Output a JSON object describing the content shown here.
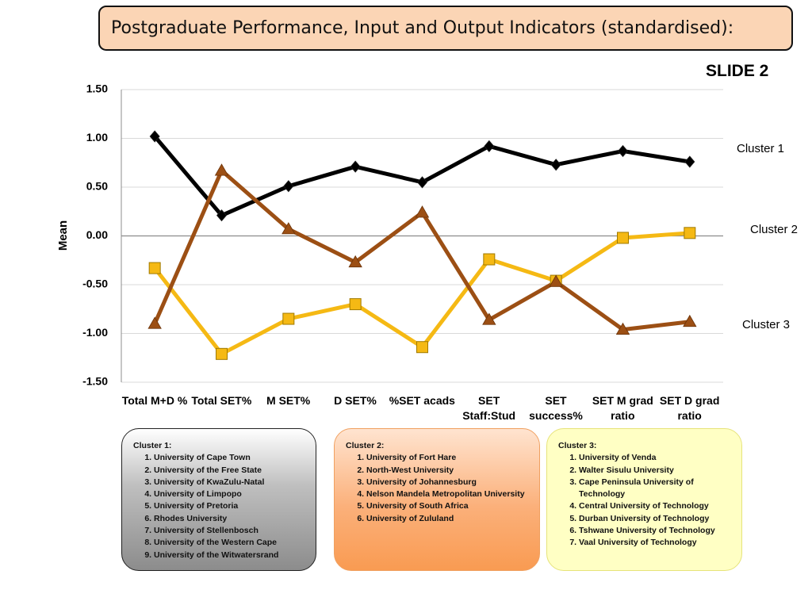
{
  "title": "Postgraduate Performance, Input and Output Indicators (standardised):",
  "slide_label": "SLIDE 2",
  "chart_data": {
    "type": "line",
    "ylabel": "Mean",
    "categories": [
      "Total M+D %",
      "Total SET%",
      "M SET%",
      "D SET%",
      "%SET acads",
      "SET Staff:Stud",
      "SET success%",
      "SET M grad ratio",
      "SET D grad ratio"
    ],
    "series": [
      {
        "name": "Cluster 1",
        "color": "#000000",
        "marker": "diamond",
        "values": [
          1.02,
          0.21,
          0.51,
          0.71,
          0.55,
          0.92,
          0.73,
          0.87,
          0.76
        ]
      },
      {
        "name": "Cluster 2",
        "color": "#f5b914",
        "marker": "square",
        "values": [
          -0.33,
          -1.21,
          -0.85,
          -0.7,
          -1.14,
          -0.24,
          -0.46,
          -0.02,
          0.03
        ]
      },
      {
        "name": "Cluster 3",
        "color": "#9c4f14",
        "marker": "triangle",
        "values": [
          -0.9,
          0.67,
          0.07,
          -0.27,
          0.24,
          -0.86,
          -0.47,
          -0.96,
          -0.88
        ]
      }
    ],
    "ylim": [
      -1.5,
      1.5
    ],
    "yticks": [
      {
        "value": 1.5,
        "label": "1.50"
      },
      {
        "value": 1,
        "label": "1.00"
      },
      {
        "value": 0.5,
        "label": "0.50"
      },
      {
        "value": 0,
        "label": "0.00"
      },
      {
        "value": -0.5,
        "label": "-0.50"
      },
      {
        "value": -1,
        "label": "-1.00"
      },
      {
        "value": -1.5,
        "label": "-1.50"
      }
    ],
    "grid": true
  },
  "clusters": [
    {
      "title": "Cluster 1:",
      "items": [
        "University of Cape Town",
        "University of the Free State",
        "University of KwaZulu-Natal",
        "University of Limpopo",
        "University of Pretoria",
        "Rhodes University",
        "University of Stellenbosch",
        "University of the Western Cape",
        "University of the Witwatersrand"
      ]
    },
    {
      "title": "Cluster 2:",
      "items": [
        "University of Fort Hare",
        "North-West University",
        "University of Johannesburg",
        "Nelson Mandela Metropolitan University",
        "University of South  Africa",
        "University of Zululand"
      ]
    },
    {
      "title": "Cluster 3:",
      "items": [
        "University of Venda",
        "Walter Sisulu University",
        "Cape Peninsula University of Technology",
        "Central University of Technology",
        "Durban University of Technology",
        "Tshwane University of Technology",
        "Vaal University of Technology"
      ]
    }
  ]
}
